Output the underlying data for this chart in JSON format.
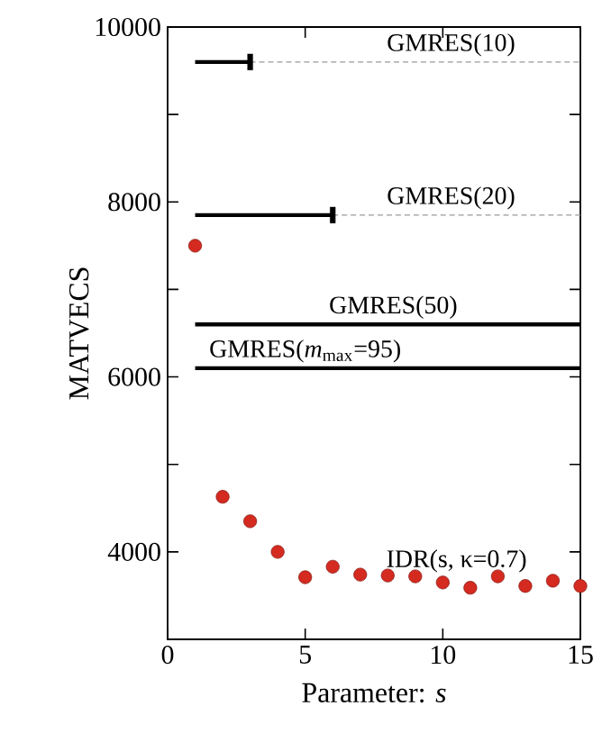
{
  "chart_data": {
    "type": "scatter",
    "xlabel": "Parameter: *s*",
    "ylabel": "MATVECS",
    "xlim": [
      0,
      15
    ],
    "ylim": [
      3000,
      10000
    ],
    "xticks": [
      0,
      5,
      10,
      15
    ],
    "yticks": [
      {
        "value": 4000,
        "label": "4000"
      },
      {
        "value": 5000,
        "label": null
      },
      {
        "value": 6000,
        "label": "6000"
      },
      {
        "value": 7000,
        "label": null
      },
      {
        "value": 8000,
        "label": "8000"
      },
      {
        "value": 9000,
        "label": null
      },
      {
        "value": 10000,
        "label": "10000"
      }
    ],
    "grid": false,
    "series": [
      {
        "type": "line",
        "color": "#000000",
        "x": [
          1,
          3
        ],
        "values": [
          9600,
          9600
        ],
        "marker": "square",
        "line_style": "solid"
      },
      {
        "type": "line",
        "color": "#999999",
        "x": [
          3,
          15
        ],
        "values": [
          9600,
          9600
        ],
        "marker": "none",
        "line_style": "dashed"
      },
      {
        "type": "line",
        "color": "#000000",
        "x": [
          1,
          6
        ],
        "values": [
          7850,
          7850
        ],
        "marker": "square",
        "line_style": "solid"
      },
      {
        "type": "line",
        "color": "#999999",
        "x": [
          6,
          15
        ],
        "values": [
          7850,
          7850
        ],
        "marker": "none",
        "line_style": "dashed"
      },
      {
        "type": "line",
        "color": "#000000",
        "x": [
          1,
          15
        ],
        "values": [
          6600,
          6600
        ],
        "marker": "none",
        "line_style": "solid"
      },
      {
        "type": "line",
        "color": "#000000",
        "x": [
          1,
          15
        ],
        "values": [
          6100,
          6100
        ],
        "marker": "none",
        "line_style": "solid"
      },
      {
        "color": "#d42a20",
        "x": [
          1,
          2,
          3,
          4,
          5,
          6,
          7,
          8,
          9,
          10,
          11,
          12,
          13,
          14,
          15
        ],
        "values": [
          7500,
          4630,
          4350,
          4000,
          3710,
          3830,
          3740,
          3730,
          3720,
          3650,
          3590,
          3720,
          3610,
          3670,
          3610
        ],
        "marker": "circle"
      }
    ],
    "annotations": [
      {
        "text": "GMRES(10)",
        "x": 10.3,
        "y": 9600
      },
      {
        "text": "GMRES(20)",
        "x": 10.3,
        "y": 7850
      },
      {
        "text": "GMRES(50)",
        "x": 8.2,
        "y": 6600
      },
      {
        "text": "GMRES(*m*$_{max}$=95)",
        "x": 5.0,
        "y": 6100
      },
      {
        "text": "IDR(s, κ=0.7)",
        "x": 10.5,
        "y": 3700
      }
    ]
  }
}
